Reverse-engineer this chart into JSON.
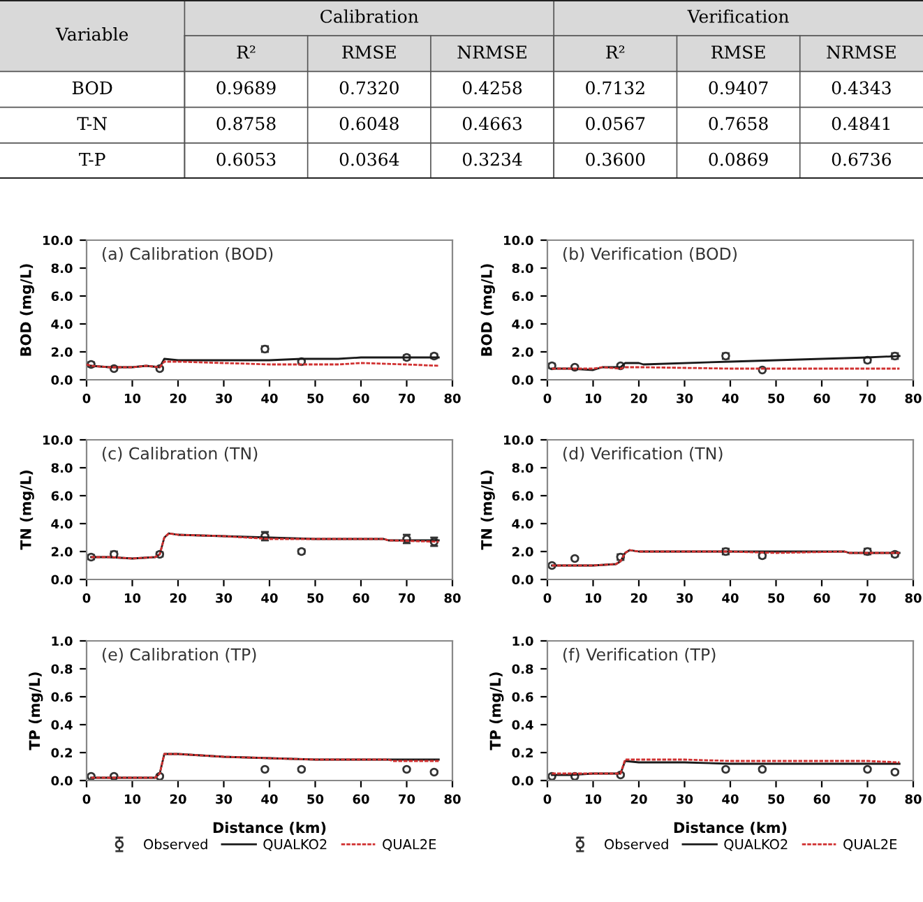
{
  "chart_data": [
    {
      "type": "other",
      "ylabel": "Variable",
      "annotations": [
        "Calibration",
        "Verification"
      ],
      "categories": [
        "R²",
        "RMSE",
        "NRMSE",
        "R²",
        "RMSE",
        "NRMSE"
      ],
      "y_categories": [
        "BOD",
        "T-N",
        "T-P"
      ],
      "cell_labels": [
        [
          "0.9689",
          "0.7320",
          "0.4258",
          "0.7132",
          "0.9407",
          "0.4343"
        ],
        [
          "0.8758",
          "0.6048",
          "0.4663",
          "0.0567",
          "0.7658",
          "0.4841"
        ],
        [
          "0.6053",
          "0.0364",
          "0.3234",
          "0.3600",
          "0.0869",
          "0.6736"
        ]
      ]
    },
    {
      "type": "line",
      "title": "(a) Calibration (BOD)",
      "ylabel": "BOD (mg/L)",
      "xlim": [
        0,
        80
      ],
      "xticks": [
        0,
        10,
        20,
        30,
        40,
        50,
        60,
        70,
        80
      ],
      "ylim": [
        0,
        10
      ],
      "yticks": [
        {
          "value": 0,
          "label": "0.0"
        },
        {
          "value": 2,
          "label": "2.0"
        },
        {
          "value": 4,
          "label": "4.0"
        },
        {
          "value": 6,
          "label": "6.0"
        },
        {
          "value": 8,
          "label": "8.0"
        },
        {
          "value": 10,
          "label": "10.0"
        }
      ],
      "grid": false,
      "legend": false,
      "series": [
        {
          "type": "scatter",
          "marker": "circle",
          "color": "#333333",
          "x": [
            1,
            6,
            16,
            39,
            47,
            70,
            76
          ],
          "values": [
            1.1,
            0.8,
            0.8,
            2.2,
            1.3,
            1.6,
            1.7
          ],
          "errors": [
            0.15,
            0.1,
            0.1,
            0.2,
            0.15,
            0.15,
            0.15
          ]
        },
        {
          "type": "line",
          "line_style": "solid",
          "color": "#1a1a1a",
          "x": [
            0,
            1,
            5,
            10,
            13,
            16,
            16.5,
            17,
            20,
            40,
            47,
            55,
            60,
            70,
            77
          ],
          "values": [
            1.1,
            1.0,
            0.9,
            0.9,
            1.0,
            0.9,
            1.2,
            1.5,
            1.4,
            1.4,
            1.5,
            1.5,
            1.6,
            1.6,
            1.6
          ]
        },
        {
          "type": "line",
          "line_style": "dashed",
          "color": "#d03030",
          "x": [
            0,
            1,
            5,
            10,
            13,
            16,
            16.5,
            17,
            20,
            40,
            47,
            55,
            60,
            70,
            77
          ],
          "values": [
            1.1,
            1.0,
            0.9,
            0.9,
            1.0,
            0.9,
            1.1,
            1.3,
            1.3,
            1.1,
            1.1,
            1.1,
            1.2,
            1.1,
            1.0
          ]
        }
      ]
    },
    {
      "type": "line",
      "title": "(b) Verification (BOD)",
      "ylabel": "BOD (mg/L)",
      "xlim": [
        0,
        80
      ],
      "xticks": [
        0,
        10,
        20,
        30,
        40,
        50,
        60,
        70,
        80
      ],
      "ylim": [
        0,
        10
      ],
      "yticks": [
        {
          "value": 0,
          "label": "0.0"
        },
        {
          "value": 2,
          "label": "2.0"
        },
        {
          "value": 4,
          "label": "4.0"
        },
        {
          "value": 6,
          "label": "6.0"
        },
        {
          "value": 8,
          "label": "8.0"
        },
        {
          "value": 10,
          "label": "10.0"
        }
      ],
      "grid": false,
      "legend": false,
      "series": [
        {
          "type": "scatter",
          "marker": "circle",
          "color": "#333333",
          "x": [
            1,
            6,
            16,
            39,
            47,
            70,
            76
          ],
          "values": [
            1.0,
            0.9,
            1.0,
            1.7,
            0.7,
            1.4,
            1.7
          ],
          "errors": [
            0.15,
            0.1,
            0.1,
            0.2,
            0.05,
            0.15,
            0.2
          ]
        },
        {
          "type": "line",
          "line_style": "solid",
          "color": "#1a1a1a",
          "x": [
            1,
            5,
            10,
            12,
            16,
            17,
            20,
            21,
            40,
            50,
            70,
            77
          ],
          "values": [
            0.8,
            0.8,
            0.7,
            0.9,
            0.9,
            1.2,
            1.2,
            1.1,
            1.3,
            1.4,
            1.6,
            1.7
          ]
        },
        {
          "type": "line",
          "line_style": "dashed",
          "color": "#d03030",
          "x": [
            1,
            5,
            10,
            12,
            16,
            17,
            20,
            21,
            40,
            50,
            70,
            77
          ],
          "values": [
            0.8,
            0.8,
            0.8,
            0.9,
            0.8,
            0.9,
            0.9,
            0.9,
            0.8,
            0.8,
            0.8,
            0.8
          ]
        }
      ]
    },
    {
      "type": "line",
      "title": "(c) Calibration (TN)",
      "ylabel": "TN (mg/L)",
      "xlim": [
        0,
        80
      ],
      "xticks": [
        0,
        10,
        20,
        30,
        40,
        50,
        60,
        70,
        80
      ],
      "ylim": [
        0,
        10
      ],
      "yticks": [
        {
          "value": 0,
          "label": "0.0"
        },
        {
          "value": 2,
          "label": "2.0"
        },
        {
          "value": 4,
          "label": "4.0"
        },
        {
          "value": 6,
          "label": "6.0"
        },
        {
          "value": 8,
          "label": "8.0"
        },
        {
          "value": 10,
          "label": "10.0"
        }
      ],
      "grid": false,
      "legend": false,
      "series": [
        {
          "type": "scatter",
          "marker": "circle",
          "color": "#333333",
          "x": [
            1,
            6,
            16,
            39,
            47,
            70,
            76
          ],
          "values": [
            1.6,
            1.8,
            1.8,
            3.1,
            2.0,
            2.9,
            2.7
          ],
          "errors": [
            0.15,
            0.2,
            0.15,
            0.3,
            0.15,
            0.3,
            0.3
          ]
        },
        {
          "type": "line",
          "line_style": "solid",
          "color": "#1a1a1a",
          "x": [
            1,
            5,
            10,
            15,
            16,
            17,
            18,
            20,
            30,
            40,
            50,
            65,
            66,
            77
          ],
          "values": [
            1.6,
            1.6,
            1.5,
            1.6,
            1.8,
            3.0,
            3.3,
            3.2,
            3.1,
            3.0,
            2.9,
            2.9,
            2.8,
            2.8
          ]
        },
        {
          "type": "line",
          "line_style": "dashed",
          "color": "#d03030",
          "x": [
            1,
            5,
            10,
            15,
            16,
            17,
            18,
            20,
            30,
            40,
            50,
            65,
            66,
            77
          ],
          "values": [
            1.6,
            1.6,
            1.5,
            1.6,
            1.8,
            3.0,
            3.3,
            3.2,
            3.1,
            2.9,
            2.9,
            2.9,
            2.8,
            2.7
          ]
        }
      ]
    },
    {
      "type": "line",
      "title": "(d) Verification (TN)",
      "ylabel": "TN (mg/L)",
      "xlim": [
        0,
        80
      ],
      "xticks": [
        0,
        10,
        20,
        30,
        40,
        50,
        60,
        70,
        80
      ],
      "ylim": [
        0,
        10
      ],
      "yticks": [
        {
          "value": 0,
          "label": "0.0"
        },
        {
          "value": 2,
          "label": "2.0"
        },
        {
          "value": 4,
          "label": "4.0"
        },
        {
          "value": 6,
          "label": "6.0"
        },
        {
          "value": 8,
          "label": "8.0"
        },
        {
          "value": 10,
          "label": "10.0"
        }
      ],
      "grid": false,
      "legend": false,
      "series": [
        {
          "type": "scatter",
          "marker": "circle",
          "color": "#333333",
          "x": [
            1,
            6,
            16,
            39,
            47,
            70,
            76
          ],
          "values": [
            1.0,
            1.5,
            1.6,
            2.0,
            1.7,
            2.0,
            1.8
          ],
          "errors": [
            0.1,
            0.1,
            0.2,
            0.2,
            0.15,
            0.2,
            0.15
          ]
        },
        {
          "type": "line",
          "line_style": "solid",
          "color": "#1a1a1a",
          "x": [
            1,
            5,
            10,
            15,
            16,
            17,
            18,
            20,
            30,
            40,
            50,
            65,
            66,
            77
          ],
          "values": [
            1.0,
            1.0,
            1.0,
            1.1,
            1.3,
            1.9,
            2.1,
            2.0,
            2.0,
            2.0,
            2.0,
            2.0,
            1.9,
            1.9
          ]
        },
        {
          "type": "line",
          "line_style": "dashed",
          "color": "#d03030",
          "x": [
            1,
            5,
            10,
            15,
            16,
            17,
            18,
            20,
            30,
            40,
            50,
            65,
            66,
            77
          ],
          "values": [
            1.0,
            1.0,
            1.0,
            1.1,
            1.3,
            1.9,
            2.1,
            2.0,
            2.0,
            2.0,
            1.9,
            2.0,
            1.9,
            1.9
          ]
        }
      ]
    },
    {
      "type": "line",
      "title": "(e) Calibration (TP)",
      "ylabel": "TP (mg/L)",
      "xlabel": "Distance (km)",
      "xlim": [
        0,
        80
      ],
      "xticks": [
        0,
        10,
        20,
        30,
        40,
        50,
        60,
        70,
        80
      ],
      "ylim": [
        0,
        1
      ],
      "yticks": [
        {
          "value": 0,
          "label": "0.0"
        },
        {
          "value": 0.2,
          "label": "0.2"
        },
        {
          "value": 0.4,
          "label": "0.4"
        },
        {
          "value": 0.6,
          "label": "0.6"
        },
        {
          "value": 0.8,
          "label": "0.8"
        },
        {
          "value": 1,
          "label": "1.0"
        }
      ],
      "grid": false,
      "legend": "bottom",
      "series": [
        {
          "name": "Observed",
          "type": "scatter",
          "marker": "circle",
          "color": "#333333",
          "x": [
            1,
            6,
            16,
            39,
            47,
            70,
            76
          ],
          "values": [
            0.03,
            0.03,
            0.03,
            0.08,
            0.08,
            0.08,
            0.06
          ],
          "errors": [
            0.01,
            0.01,
            0.01,
            0.01,
            0.01,
            0.01,
            0.01
          ]
        },
        {
          "name": "QUALKO2",
          "type": "line",
          "line_style": "solid",
          "color": "#1a1a1a",
          "x": [
            1,
            5,
            10,
            15,
            16,
            17,
            20,
            30,
            40,
            50,
            66,
            67,
            77
          ],
          "values": [
            0.02,
            0.02,
            0.02,
            0.02,
            0.05,
            0.19,
            0.19,
            0.17,
            0.16,
            0.15,
            0.15,
            0.15,
            0.15
          ]
        },
        {
          "name": "QUAL2E",
          "type": "line",
          "line_style": "dashed",
          "color": "#d03030",
          "x": [
            1,
            5,
            10,
            15,
            16,
            17,
            20,
            30,
            40,
            50,
            66,
            67,
            77
          ],
          "values": [
            0.02,
            0.02,
            0.02,
            0.02,
            0.05,
            0.19,
            0.19,
            0.17,
            0.16,
            0.15,
            0.15,
            0.14,
            0.14
          ]
        }
      ]
    },
    {
      "type": "line",
      "title": "(f) Verification (TP)",
      "ylabel": "TP (mg/L)",
      "xlabel": "Distance (km)",
      "xlim": [
        0,
        80
      ],
      "xticks": [
        0,
        10,
        20,
        30,
        40,
        50,
        60,
        70,
        80
      ],
      "ylim": [
        0,
        1
      ],
      "yticks": [
        {
          "value": 0,
          "label": "0.0"
        },
        {
          "value": 0.2,
          "label": "0.2"
        },
        {
          "value": 0.4,
          "label": "0.4"
        },
        {
          "value": 0.6,
          "label": "0.6"
        },
        {
          "value": 0.8,
          "label": "0.8"
        },
        {
          "value": 1,
          "label": "1.0"
        }
      ],
      "grid": false,
      "legend": "bottom",
      "series": [
        {
          "name": "Observed",
          "type": "scatter",
          "marker": "circle",
          "color": "#333333",
          "x": [
            1,
            6,
            16,
            39,
            47,
            70,
            76
          ],
          "values": [
            0.03,
            0.03,
            0.04,
            0.08,
            0.08,
            0.08,
            0.06
          ],
          "errors": [
            0.01,
            0.01,
            0.01,
            0.01,
            0.01,
            0.01,
            0.01
          ]
        },
        {
          "name": "QUALKO2",
          "type": "line",
          "line_style": "solid",
          "color": "#1a1a1a",
          "x": [
            1,
            5,
            10,
            15,
            16,
            17,
            20,
            30,
            40,
            50,
            70,
            77
          ],
          "values": [
            0.04,
            0.04,
            0.05,
            0.05,
            0.05,
            0.14,
            0.13,
            0.13,
            0.12,
            0.12,
            0.12,
            0.12
          ]
        },
        {
          "name": "QUAL2E",
          "type": "line",
          "line_style": "dashed",
          "color": "#d03030",
          "x": [
            1,
            5,
            10,
            15,
            16,
            17,
            20,
            30,
            40,
            50,
            70,
            77
          ],
          "values": [
            0.05,
            0.05,
            0.05,
            0.05,
            0.05,
            0.15,
            0.15,
            0.15,
            0.14,
            0.14,
            0.14,
            0.13
          ]
        }
      ]
    }
  ]
}
